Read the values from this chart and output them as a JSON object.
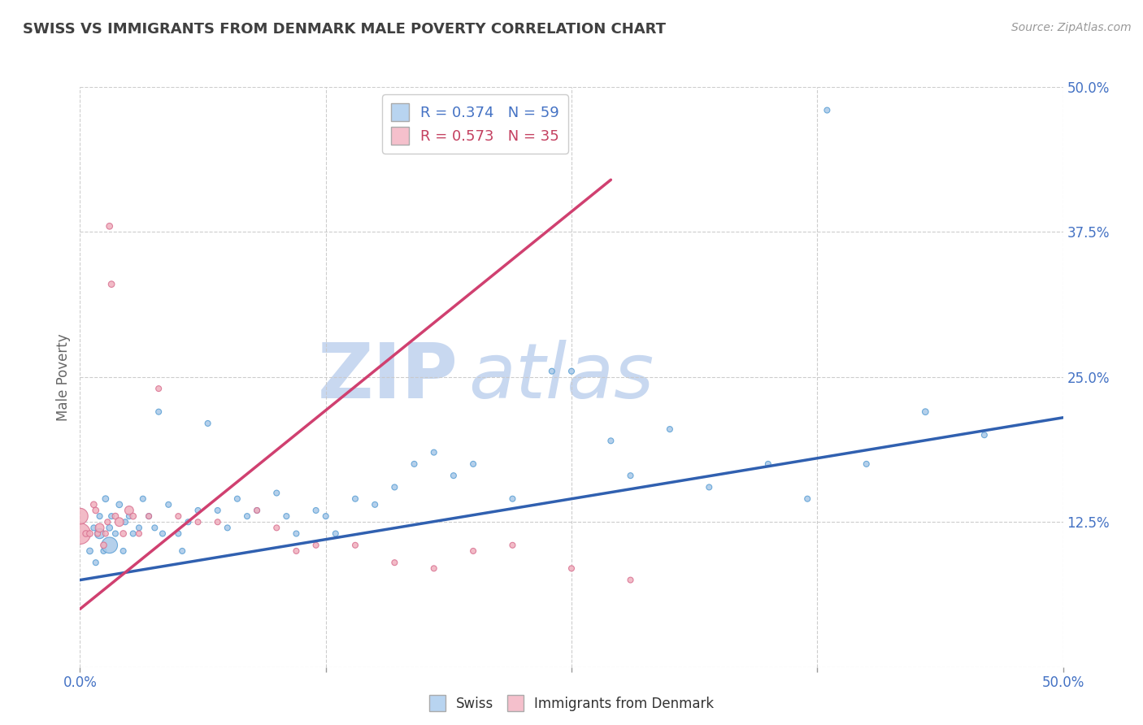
{
  "title": "SWISS VS IMMIGRANTS FROM DENMARK MALE POVERTY CORRELATION CHART",
  "source_text": "Source: ZipAtlas.com",
  "xlabel": "",
  "ylabel": "Male Poverty",
  "xlim": [
    0.0,
    0.5
  ],
  "ylim": [
    0.0,
    0.5
  ],
  "xticks": [
    0.0,
    0.125,
    0.25,
    0.375,
    0.5
  ],
  "yticks": [
    0.0,
    0.125,
    0.25,
    0.375,
    0.5
  ],
  "xtick_labels_show": [
    "0.0%",
    "50.0%"
  ],
  "xtick_labels_pos": [
    0.0,
    0.5
  ],
  "ytick_labels": [
    "12.5%",
    "25.0%",
    "37.5%",
    "50.0%"
  ],
  "ytick_labels_pos": [
    0.125,
    0.25,
    0.375,
    0.5
  ],
  "swiss_R": 0.374,
  "swiss_N": 59,
  "denmark_R": 0.573,
  "denmark_N": 35,
  "swiss_color": "#a8c8e8",
  "swiss_edge_color": "#5a9fd4",
  "denmark_color": "#f0b0be",
  "denmark_edge_color": "#d87090",
  "trend_swiss_color": "#3060b0",
  "trend_denmark_color": "#d04070",
  "legend_swiss_color": "#b8d4f0",
  "legend_denmark_color": "#f5c0cc",
  "background_color": "#ffffff",
  "grid_color": "#c8c8c8",
  "watermark_color": "#c8d8f0",
  "swiss_trend_x0": 0.0,
  "swiss_trend_y0": 0.075,
  "swiss_trend_x1": 0.5,
  "swiss_trend_y1": 0.215,
  "dk_trend_x0": 0.0,
  "dk_trend_y0": 0.05,
  "dk_trend_x1": 0.27,
  "dk_trend_y1": 0.42,
  "swiss_x": [
    0.005,
    0.007,
    0.008,
    0.01,
    0.01,
    0.012,
    0.013,
    0.015,
    0.015,
    0.016,
    0.018,
    0.02,
    0.022,
    0.023,
    0.025,
    0.027,
    0.03,
    0.032,
    0.035,
    0.038,
    0.04,
    0.042,
    0.045,
    0.05,
    0.052,
    0.055,
    0.06,
    0.065,
    0.07,
    0.075,
    0.08,
    0.085,
    0.09,
    0.1,
    0.105,
    0.11,
    0.12,
    0.125,
    0.13,
    0.14,
    0.15,
    0.16,
    0.17,
    0.18,
    0.19,
    0.2,
    0.22,
    0.24,
    0.25,
    0.27,
    0.28,
    0.3,
    0.32,
    0.35,
    0.37,
    0.38,
    0.4,
    0.43,
    0.46
  ],
  "swiss_y": [
    0.1,
    0.12,
    0.09,
    0.13,
    0.115,
    0.1,
    0.145,
    0.12,
    0.105,
    0.13,
    0.115,
    0.14,
    0.1,
    0.125,
    0.13,
    0.115,
    0.12,
    0.145,
    0.13,
    0.12,
    0.22,
    0.115,
    0.14,
    0.115,
    0.1,
    0.125,
    0.135,
    0.21,
    0.135,
    0.12,
    0.145,
    0.13,
    0.135,
    0.15,
    0.13,
    0.115,
    0.135,
    0.13,
    0.115,
    0.145,
    0.14,
    0.155,
    0.175,
    0.185,
    0.165,
    0.175,
    0.145,
    0.255,
    0.255,
    0.195,
    0.165,
    0.205,
    0.155,
    0.175,
    0.145,
    0.48,
    0.175,
    0.22,
    0.2
  ],
  "swiss_sizes": [
    30,
    25,
    25,
    25,
    80,
    25,
    30,
    30,
    200,
    25,
    25,
    30,
    25,
    25,
    25,
    25,
    25,
    25,
    25,
    25,
    25,
    25,
    25,
    25,
    25,
    25,
    25,
    25,
    25,
    25,
    25,
    25,
    25,
    25,
    25,
    25,
    25,
    25,
    25,
    25,
    25,
    25,
    25,
    25,
    25,
    25,
    25,
    25,
    25,
    25,
    25,
    25,
    25,
    25,
    25,
    25,
    25,
    30,
    25
  ],
  "denmark_x": [
    0.0,
    0.0,
    0.003,
    0.005,
    0.007,
    0.008,
    0.009,
    0.01,
    0.012,
    0.013,
    0.014,
    0.015,
    0.016,
    0.018,
    0.02,
    0.022,
    0.025,
    0.027,
    0.03,
    0.035,
    0.04,
    0.05,
    0.06,
    0.07,
    0.09,
    0.1,
    0.11,
    0.12,
    0.14,
    0.16,
    0.18,
    0.2,
    0.22,
    0.25,
    0.28
  ],
  "denmark_y": [
    0.115,
    0.13,
    0.115,
    0.115,
    0.14,
    0.135,
    0.115,
    0.12,
    0.105,
    0.115,
    0.125,
    0.38,
    0.33,
    0.13,
    0.125,
    0.115,
    0.135,
    0.13,
    0.115,
    0.13,
    0.24,
    0.13,
    0.125,
    0.125,
    0.135,
    0.12,
    0.1,
    0.105,
    0.105,
    0.09,
    0.085,
    0.1,
    0.105,
    0.085,
    0.075
  ],
  "denmark_sizes": [
    350,
    200,
    30,
    30,
    30,
    30,
    25,
    60,
    30,
    25,
    25,
    30,
    30,
    30,
    60,
    30,
    60,
    30,
    25,
    25,
    25,
    25,
    25,
    25,
    25,
    25,
    25,
    25,
    25,
    25,
    25,
    25,
    25,
    25,
    25
  ]
}
